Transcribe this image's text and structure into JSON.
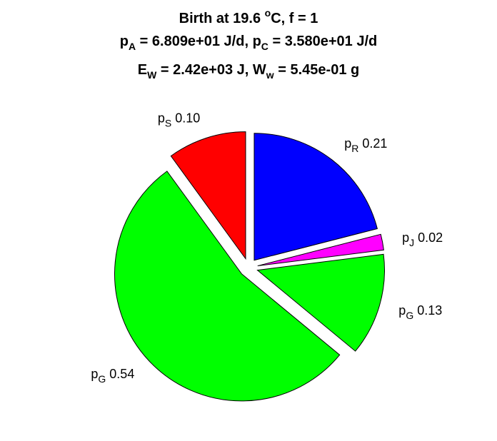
{
  "chart_data": {
    "type": "pie",
    "title": {
      "line1": {
        "pre": "Birth at 19.6 ",
        "sup": "o",
        "post": "C, f = 1"
      },
      "line2": [
        {
          "base": "p",
          "sub": "A",
          "text": " = 6.809e+01 J/d, "
        },
        {
          "base": "p",
          "sub": "C",
          "text": " = 3.580e+01 J/d"
        }
      ],
      "line3": [
        {
          "base": "E",
          "sub": "W",
          "text": " = 2.42e+03 J, "
        },
        {
          "base": "W",
          "sub": "w",
          "text": " = 5.45e-01 g"
        }
      ]
    },
    "slices": [
      {
        "symbol": "p",
        "sub": "R",
        "value": 0.21,
        "label": "0.21",
        "color": "#0000ff"
      },
      {
        "symbol": "p",
        "sub": "J",
        "value": 0.02,
        "label": "0.02",
        "color": "#ff00ff"
      },
      {
        "symbol": "p",
        "sub": "G",
        "value": 0.13,
        "label": "0.13",
        "color": "#00ff00"
      },
      {
        "symbol": "p",
        "sub": "G",
        "value": 0.54,
        "label": "0.54",
        "color": "#00ff00"
      },
      {
        "symbol": "p",
        "sub": "S",
        "value": 0.1,
        "label": "0.10",
        "color": "#ff0000"
      }
    ],
    "exploded": true,
    "legend": "none"
  }
}
